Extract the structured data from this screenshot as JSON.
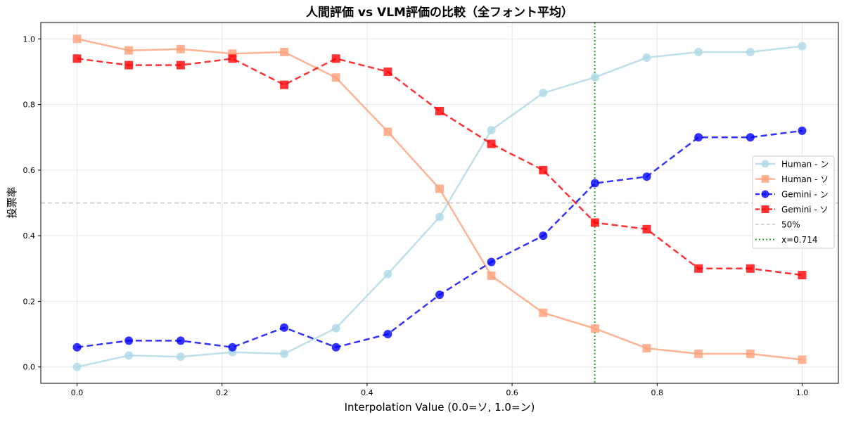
{
  "chart_data": {
    "type": "line",
    "title": "人間評価 vs VLM評価の比較（全フォント平均）",
    "xlabel": "Interpolation Value (0.0=ソ, 1.0=ン)",
    "ylabel": "投票率",
    "xlim": [
      -0.05,
      1.05
    ],
    "ylim": [
      -0.05,
      1.05
    ],
    "xticks": [
      "0.0",
      "0.2",
      "0.4",
      "0.6",
      "0.8",
      "1.0"
    ],
    "yticks": [
      "0.0",
      "0.2",
      "0.4",
      "0.6",
      "0.8",
      "1.0"
    ],
    "grid": true,
    "legend_position": "center-right",
    "x": [
      0,
      0.0714,
      0.1429,
      0.2143,
      0.2857,
      0.3571,
      0.4286,
      0.5,
      0.5714,
      0.6429,
      0.7143,
      0.7857,
      0.8571,
      0.9286,
      1.0
    ],
    "series": [
      {
        "name": "Human - ン",
        "color": "#add8e6",
        "marker": "circle",
        "dash": "solid",
        "values": [
          0,
          0.035,
          0.031,
          0.045,
          0.04,
          0.118,
          0.283,
          0.457,
          0.722,
          0.835,
          0.883,
          0.943,
          0.96,
          0.96,
          0.978
        ]
      },
      {
        "name": "Human - ソ",
        "color": "#ffa07a",
        "marker": "square",
        "dash": "solid",
        "values": [
          1.0,
          0.965,
          0.969,
          0.955,
          0.96,
          0.882,
          0.717,
          0.543,
          0.278,
          0.165,
          0.117,
          0.057,
          0.04,
          0.04,
          0.022
        ]
      },
      {
        "name": "Gemini - ン",
        "color": "#0000ff",
        "marker": "circle",
        "dash": "dashed",
        "values": [
          0.06,
          0.08,
          0.08,
          0.06,
          0.12,
          0.06,
          0.1,
          0.22,
          0.32,
          0.4,
          0.56,
          0.58,
          0.7,
          0.7,
          0.72
        ]
      },
      {
        "name": "Gemini - ソ",
        "color": "#ff0000",
        "marker": "square",
        "dash": "dashed",
        "values": [
          0.94,
          0.92,
          0.92,
          0.94,
          0.86,
          0.94,
          0.9,
          0.78,
          0.68,
          0.6,
          0.44,
          0.42,
          0.3,
          0.3,
          0.28
        ]
      }
    ],
    "hline": {
      "name": "50%",
      "value": 0.5,
      "color": "#bbbbbb"
    },
    "vline": {
      "name": "x=0.714",
      "value": 0.714,
      "color": "#2ca02c"
    }
  }
}
